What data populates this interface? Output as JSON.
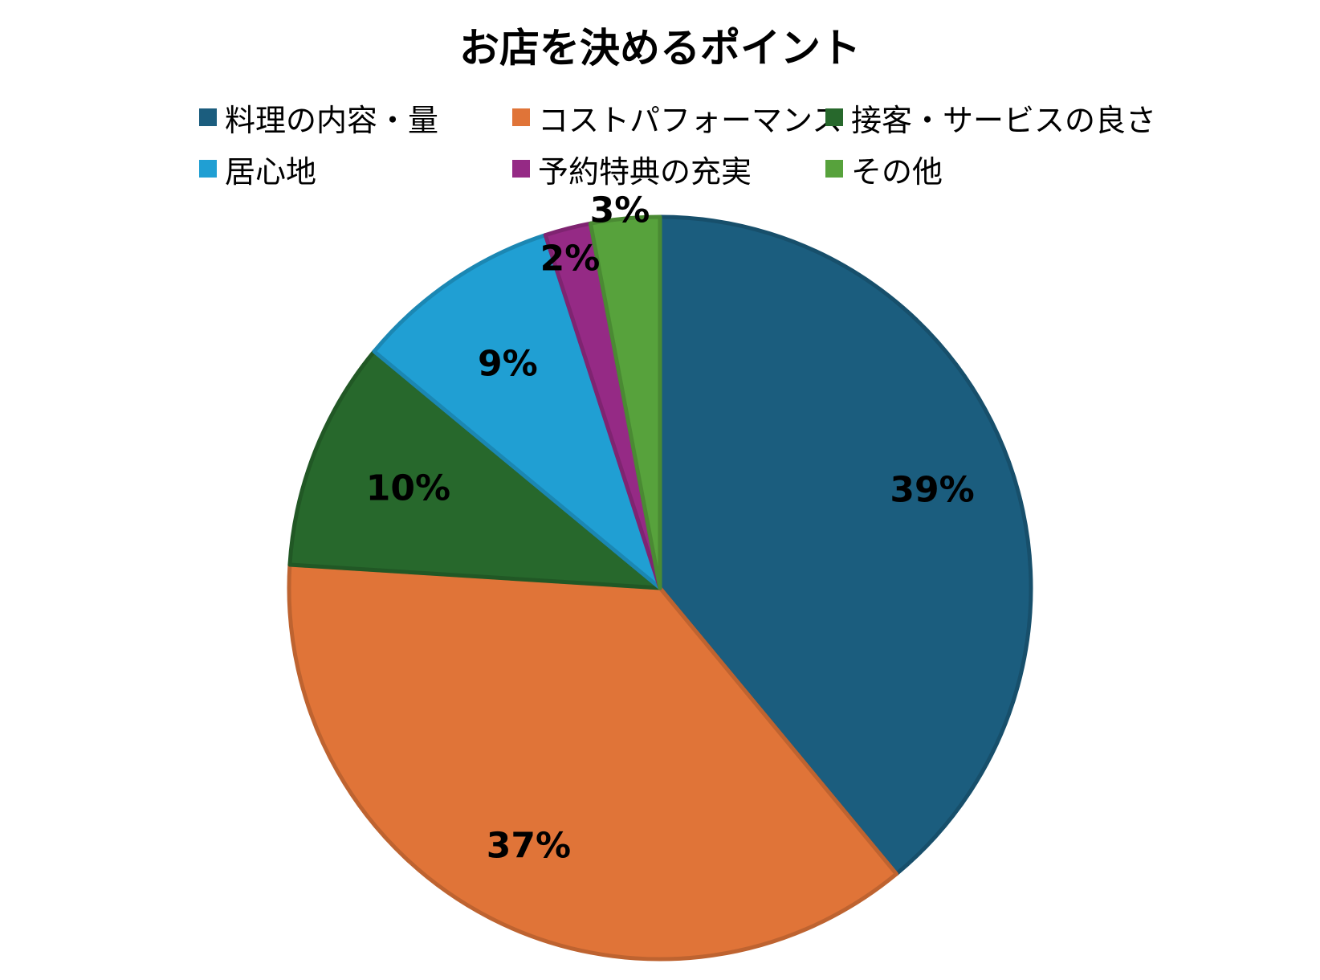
{
  "chart_data": {
    "type": "pie",
    "title": "お店を決めるポイント",
    "legend_position": "top",
    "start_angle": "top",
    "direction": "clockwise",
    "slices": [
      {
        "label": "料理の内容・量",
        "value": 39,
        "value_label": "39%",
        "color": "#1b5d7e"
      },
      {
        "label": "コストパフォーマンス",
        "value": 37,
        "value_label": "37%",
        "color": "#e07438"
      },
      {
        "label": "接客・サービスの良さ",
        "value": 10,
        "value_label": "10%",
        "color": "#27682c"
      },
      {
        "label": "居心地",
        "value": 9,
        "value_label": "9%",
        "color": "#209fd3"
      },
      {
        "label": "予約特典の充実",
        "value": 2,
        "value_label": "2%",
        "color": "#952a85"
      },
      {
        "label": "その他",
        "value": 3,
        "value_label": "3%",
        "color": "#57a23c"
      }
    ]
  }
}
